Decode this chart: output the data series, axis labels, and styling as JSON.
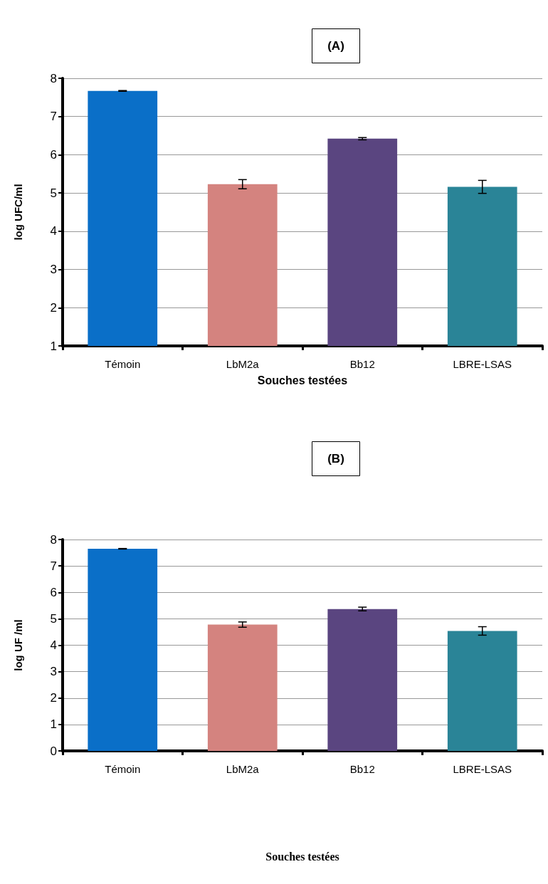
{
  "chart_data": [
    {
      "type": "bar",
      "title": "(A)",
      "xlabel": "Souches testées",
      "ylabel": "log UFC/ml",
      "categories": [
        "Témoin",
        "LbM2a",
        "Bb12",
        "LBRE-LSAS"
      ],
      "values": [
        7.67,
        5.23,
        6.42,
        5.16
      ],
      "errors": [
        0.01,
        0.12,
        0.03,
        0.17
      ],
      "colors": [
        "#0a6fc8",
        "#d4837f",
        "#5a4580",
        "#2a8497"
      ],
      "ylim": [
        1,
        8
      ],
      "yticks": [
        1,
        2,
        3,
        4,
        5,
        6,
        7,
        8
      ],
      "grid": "y"
    },
    {
      "type": "bar",
      "title": "(B)",
      "xlabel": "Souches testées",
      "ylabel": "log UF /ml",
      "categories": [
        "Témoin",
        "LbM2a",
        "Bb12",
        "LBRE-LSAS"
      ],
      "values": [
        7.65,
        4.78,
        5.37,
        4.54
      ],
      "errors": [
        0.01,
        0.1,
        0.07,
        0.16
      ],
      "colors": [
        "#0a6fc8",
        "#d4837f",
        "#5a4580",
        "#2a8497"
      ],
      "ylim": [
        0,
        8
      ],
      "yticks": [
        0,
        1,
        2,
        3,
        4,
        5,
        6,
        7,
        8
      ],
      "grid": "y"
    }
  ]
}
